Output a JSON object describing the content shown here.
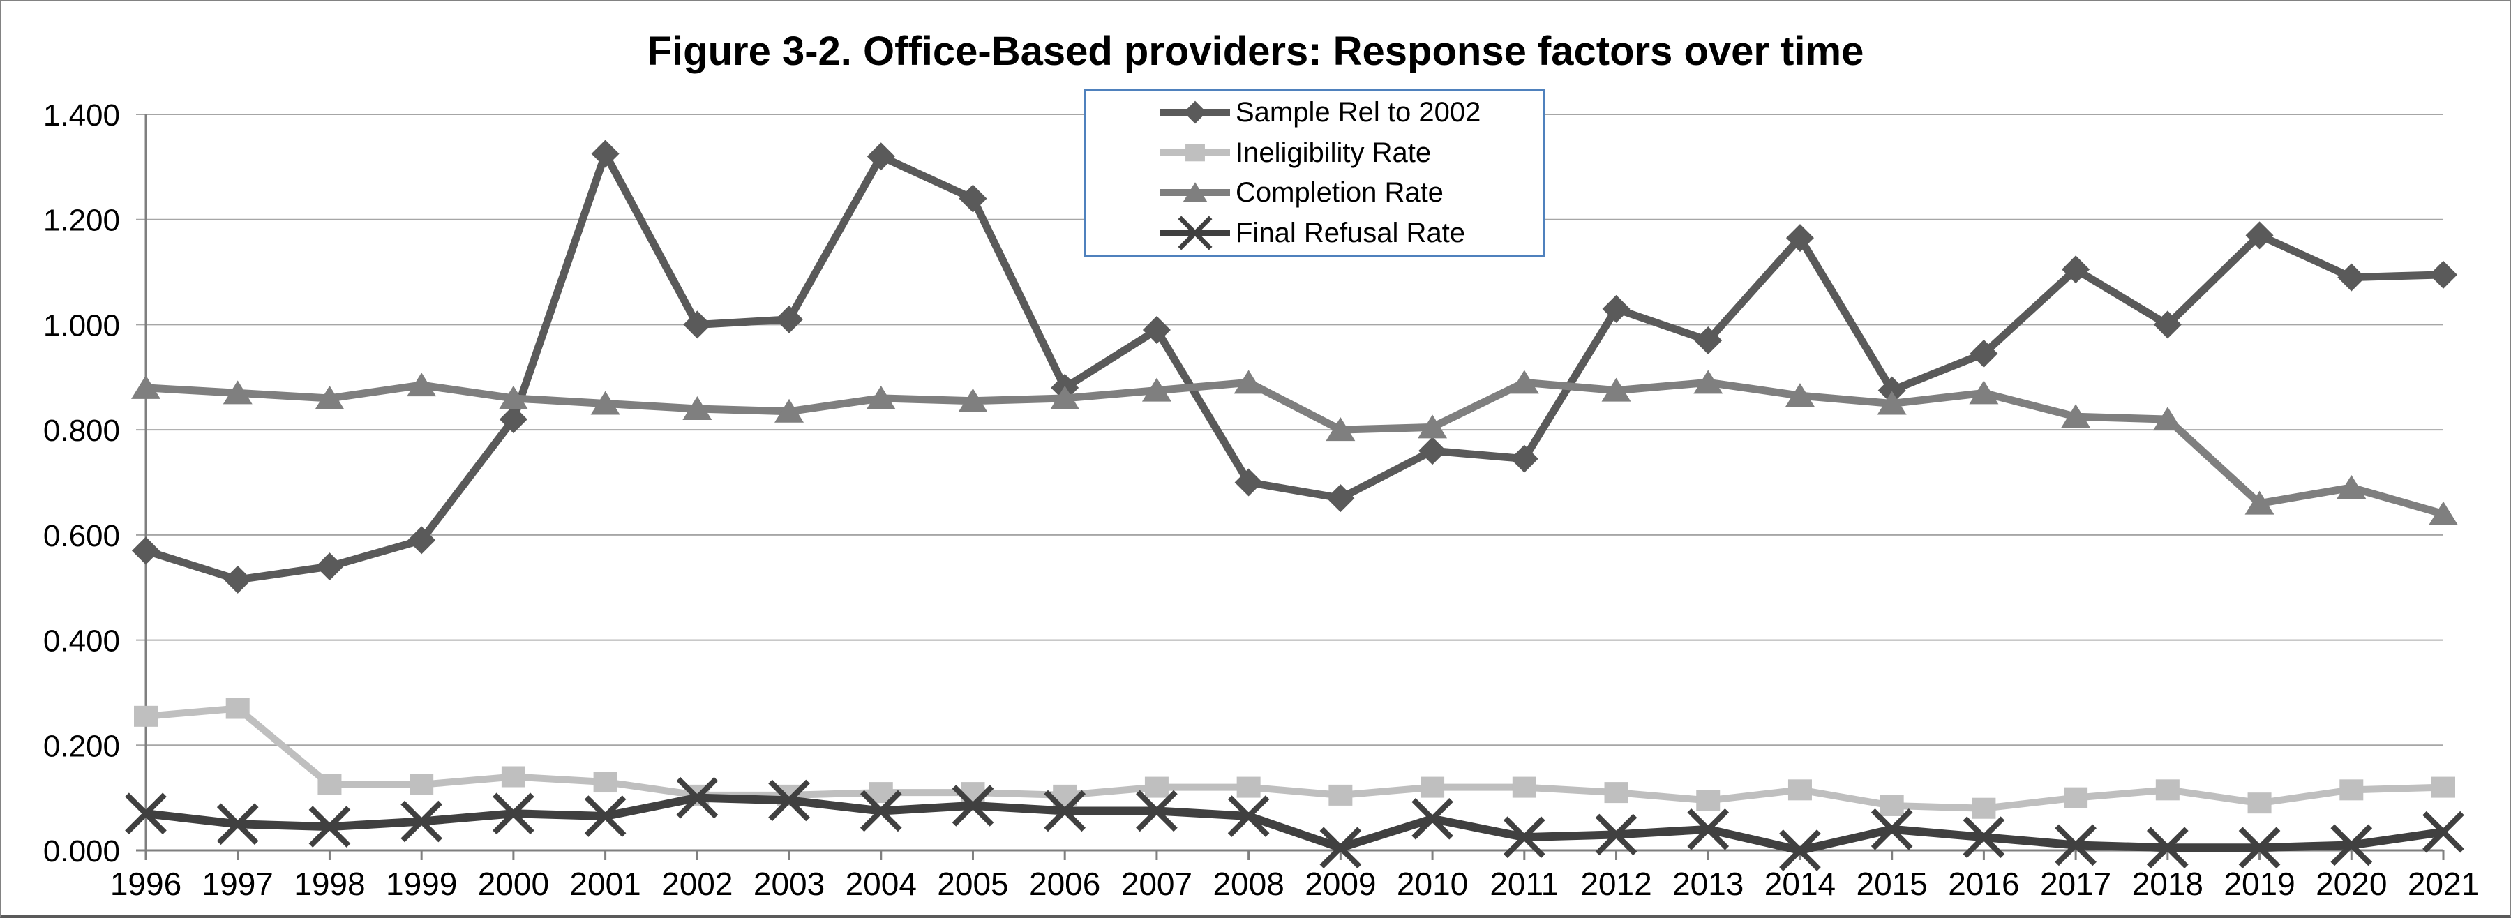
{
  "title": "Figure 3-2. Office-Based providers: Response factors over time",
  "colors": {
    "background": "#ffffff",
    "frame_border": "#828282",
    "grid": "#a6a6a6",
    "axis": "#7f7f7f",
    "text": "#000000",
    "legend_border": "#4f81bd"
  },
  "chart_data": {
    "type": "line",
    "title": "Figure 3-2. Office-Based providers: Response factors over time",
    "xlabel": "",
    "ylabel": "",
    "x": [
      1996,
      1997,
      1998,
      1999,
      2000,
      2001,
      2002,
      2003,
      2004,
      2005,
      2006,
      2007,
      2008,
      2009,
      2010,
      2011,
      2012,
      2013,
      2014,
      2015,
      2016,
      2017,
      2018,
      2019,
      2020,
      2021
    ],
    "ylim": [
      0,
      1.4
    ],
    "y_tick_labels": [
      "0.000",
      "0.200",
      "0.400",
      "0.600",
      "0.800",
      "1.000",
      "1.200",
      "1.400"
    ],
    "grid": true,
    "legend_position": "top-center",
    "series": [
      {
        "name": "Sample Rel to 2002",
        "marker": "diamond",
        "color": "#5a5a5a",
        "line_width": 11,
        "values": [
          0.57,
          0.515,
          0.54,
          0.59,
          0.82,
          1.325,
          1.0,
          1.01,
          1.32,
          1.24,
          0.88,
          0.99,
          0.7,
          0.67,
          0.76,
          0.745,
          1.03,
          0.97,
          1.165,
          0.875,
          0.945,
          1.105,
          1.0,
          1.17,
          1.09,
          1.095
        ]
      },
      {
        "name": "Ineligibility Rate",
        "marker": "square",
        "color": "#bfbfbf",
        "line_width": 10,
        "values": [
          0.255,
          0.27,
          0.125,
          0.125,
          0.14,
          0.13,
          0.105,
          0.105,
          0.11,
          0.11,
          0.105,
          0.12,
          0.12,
          0.105,
          0.12,
          0.12,
          0.11,
          0.095,
          0.115,
          0.085,
          0.08,
          0.1,
          0.115,
          0.09,
          0.115,
          0.12
        ]
      },
      {
        "name": "Completion Rate",
        "marker": "triangle",
        "color": "#7f7f7f",
        "line_width": 11,
        "values": [
          0.88,
          0.87,
          0.86,
          0.885,
          0.86,
          0.85,
          0.84,
          0.835,
          0.86,
          0.855,
          0.86,
          0.875,
          0.89,
          0.8,
          0.805,
          0.89,
          0.875,
          0.89,
          0.865,
          0.85,
          0.87,
          0.825,
          0.82,
          0.66,
          0.69,
          0.64
        ]
      },
      {
        "name": "Final Refusal Rate",
        "marker": "x",
        "color": "#404040",
        "line_width": 12,
        "values": [
          0.07,
          0.05,
          0.045,
          0.055,
          0.07,
          0.065,
          0.1,
          0.095,
          0.075,
          0.085,
          0.075,
          0.075,
          0.065,
          0.005,
          0.06,
          0.025,
          0.03,
          0.04,
          0.0,
          0.04,
          0.025,
          0.01,
          0.005,
          0.005,
          0.01,
          0.035
        ]
      }
    ]
  }
}
